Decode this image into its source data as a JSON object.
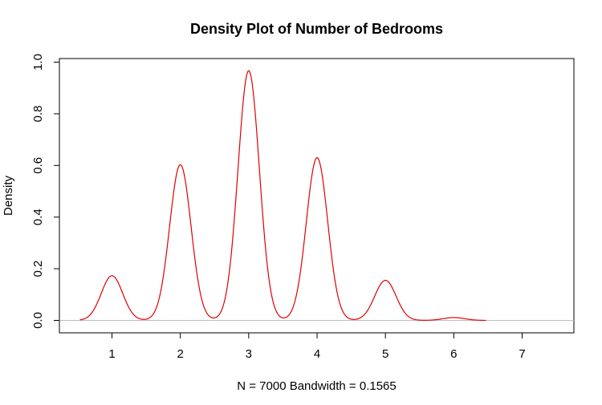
{
  "chart_data": {
    "type": "line",
    "title": "Density Plot of Number of Bedrooms",
    "xlabel": "N = 7000   Bandwidth = 0.1565",
    "ylabel": "Density",
    "xlim": [
      0.5,
      7.5
    ],
    "ylim": [
      0,
      1.0
    ],
    "x_ticks": [
      "1",
      "2",
      "3",
      "4",
      "5",
      "6",
      "7"
    ],
    "y_ticks": [
      "0.0",
      "0.2",
      "0.4",
      "0.6",
      "0.8",
      "1.0"
    ],
    "grid": false,
    "baseline_at_zero": true,
    "series": [
      {
        "color": "#e00000",
        "peaks": [
          {
            "x": 1,
            "density": 0.173
          },
          {
            "x": 2,
            "density": 0.603
          },
          {
            "x": 3,
            "density": 0.967
          },
          {
            "x": 4,
            "density": 0.63
          },
          {
            "x": 5,
            "density": 0.155
          },
          {
            "x": 6,
            "density": 0.011
          }
        ],
        "bandwidth": 0.1565,
        "x_range": [
          0.53,
          6.47
        ]
      }
    ]
  },
  "colors": {
    "line": "#e00000",
    "baseline": "#bebebe",
    "frame": "#000000"
  }
}
